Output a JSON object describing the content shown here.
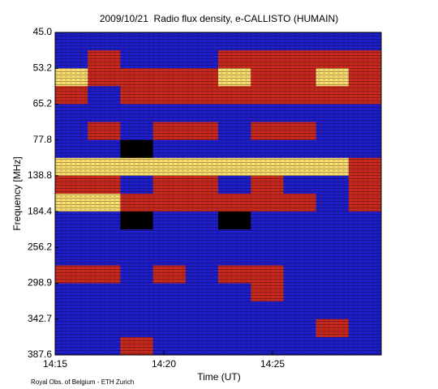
{
  "chart_data": {
    "type": "heatmap",
    "title": "2009/10/21  Radio flux density, e-CALLISTO (HUMAIN)",
    "x_label": "Time (UT)",
    "y_label": "Frequency [MHz]",
    "footer": "Royal Obs. of Belgium - ETH Zurich",
    "xlim": [
      "14:15",
      "14:30"
    ],
    "xticks": [
      "14:15",
      "14:20",
      "14:25"
    ],
    "y_categories": [
      "45.0",
      "53.2",
      "65.2",
      "77.8",
      "138.8",
      "184.4",
      "256.2",
      "298.9",
      "342.7",
      "387.6"
    ],
    "zlim": [
      0,
      3
    ],
    "colorscale": [
      "#000000",
      "#1f1fd0",
      "#cc2a1e",
      "#ffe070"
    ],
    "values": [
      [
        1,
        1,
        1,
        1,
        1,
        1,
        1,
        1,
        1,
        1
      ],
      [
        1,
        2,
        1,
        1,
        1,
        2,
        2,
        2,
        2,
        2
      ],
      [
        3,
        2,
        2,
        2,
        2,
        3,
        2,
        2,
        3,
        2
      ],
      [
        2,
        1,
        2,
        2,
        2,
        2,
        2,
        2,
        2,
        2
      ],
      [
        1,
        1,
        1,
        1,
        1,
        1,
        1,
        1,
        1,
        1
      ],
      [
        1,
        2,
        1,
        2,
        2,
        1,
        2,
        2,
        1,
        1
      ],
      [
        1,
        1,
        0,
        1,
        1,
        1,
        1,
        1,
        1,
        1
      ],
      [
        3,
        3,
        3,
        3,
        3,
        3,
        3,
        3,
        3,
        2
      ],
      [
        2,
        2,
        1,
        2,
        2,
        1,
        2,
        1,
        1,
        2
      ],
      [
        3,
        3,
        2,
        2,
        2,
        2,
        2,
        2,
        1,
        2
      ],
      [
        1,
        1,
        0,
        1,
        1,
        0,
        1,
        1,
        1,
        1
      ],
      [
        1,
        1,
        1,
        1,
        1,
        1,
        1,
        1,
        1,
        1
      ],
      [
        1,
        1,
        1,
        1,
        1,
        1,
        1,
        1,
        1,
        1
      ],
      [
        2,
        2,
        1,
        2,
        1,
        2,
        2,
        1,
        1,
        1
      ],
      [
        1,
        1,
        1,
        1,
        1,
        1,
        2,
        1,
        1,
        1
      ],
      [
        1,
        1,
        1,
        1,
        1,
        1,
        1,
        1,
        1,
        1
      ],
      [
        1,
        1,
        1,
        1,
        1,
        1,
        1,
        1,
        2,
        1
      ],
      [
        1,
        1,
        2,
        1,
        1,
        1,
        1,
        1,
        1,
        1
      ]
    ]
  }
}
